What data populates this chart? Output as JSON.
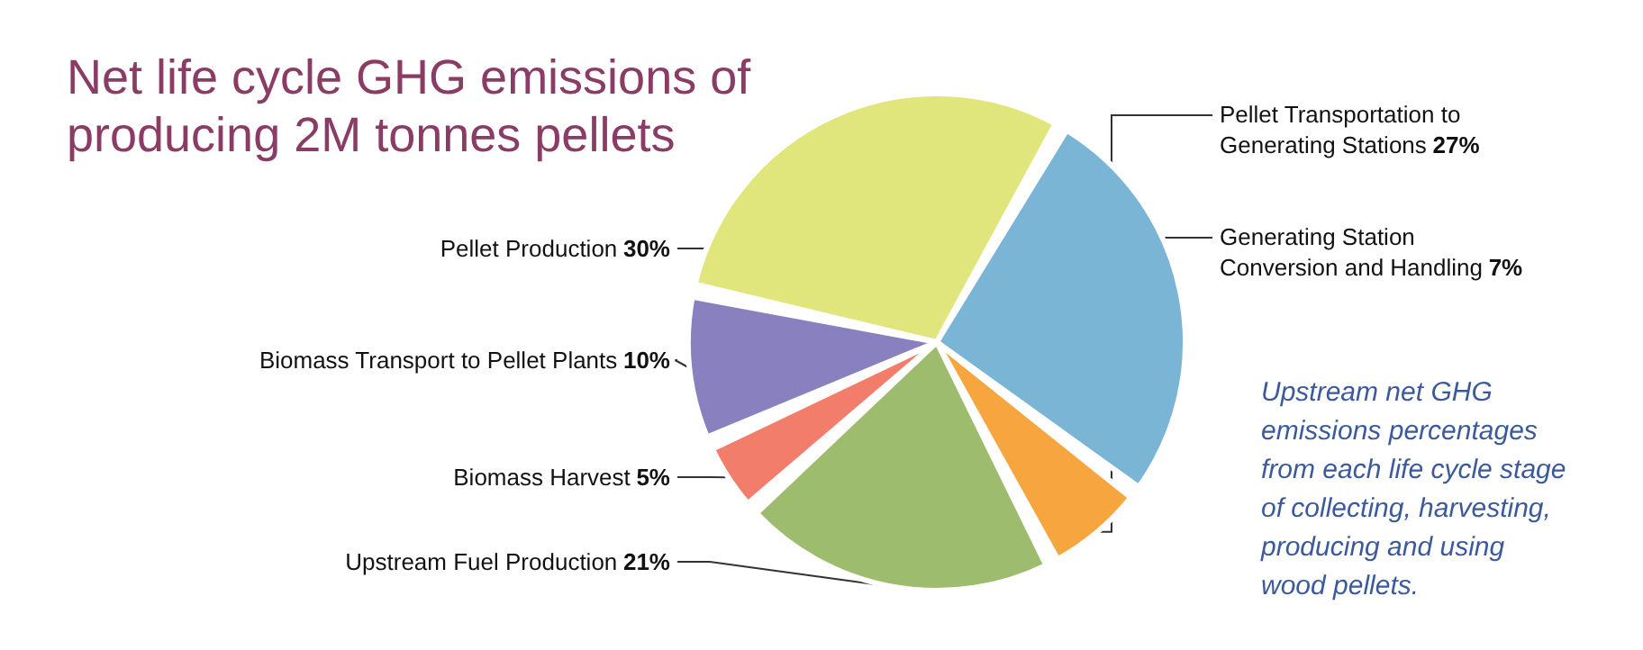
{
  "chart_data": {
    "type": "pie",
    "title": "Net life cycle GHG emissions of\nproducing 2M tonnes pellets",
    "categories": [
      "Pellet Transportation to\nGenerating Stations",
      "Generating Station\nConversion and Handling",
      "Upstream Fuel Production",
      "Biomass Harvest",
      "Biomass Transport to Pellet Plants",
      "Pellet Production"
    ],
    "values": [
      27,
      7,
      21,
      5,
      10,
      30
    ],
    "value_labels": [
      "27%",
      "7%",
      "21%",
      "5%",
      "10%",
      "30%"
    ],
    "colors": [
      "#7ab5d6",
      "#f7a63f",
      "#9dbc6e",
      "#f27d6b",
      "#8880bf",
      "#e0e67b"
    ],
    "annotations": [
      "Upstream net GHG\nemissions percentages\nfrom each life cycle stage\nof collecting, harvesting,\nproducing and using\nwood pellets."
    ]
  }
}
